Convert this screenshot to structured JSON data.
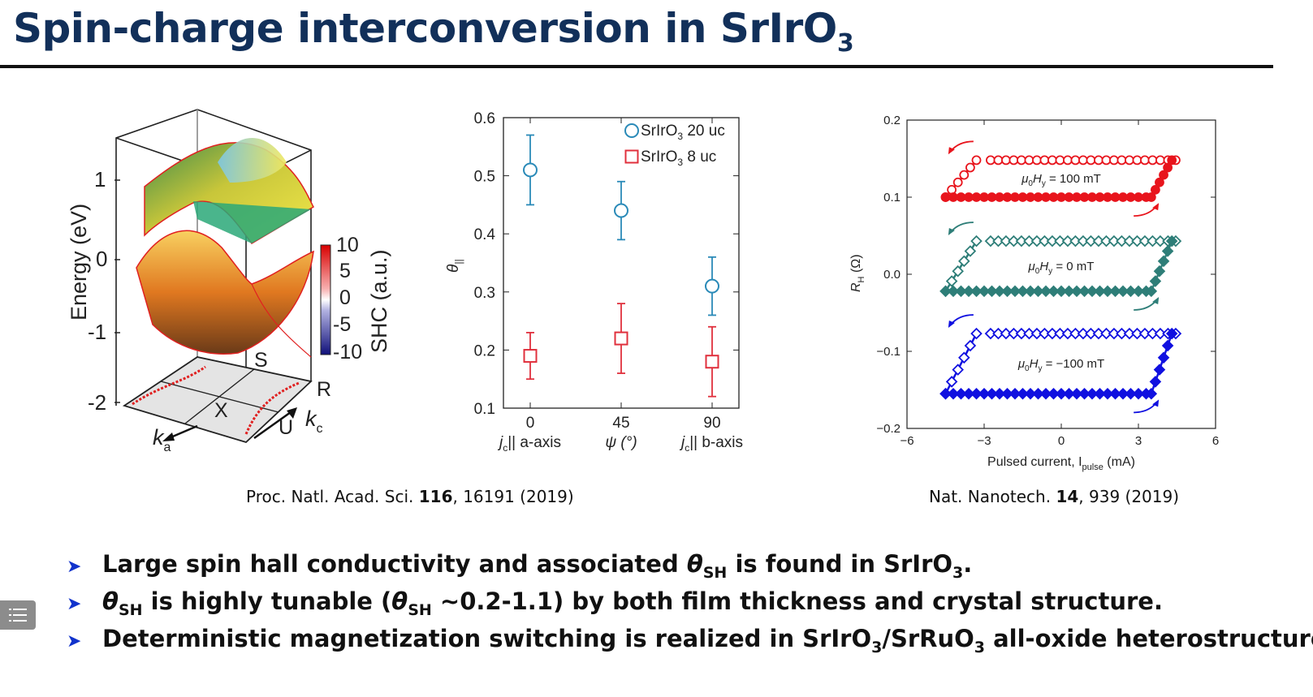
{
  "title": {
    "main": "Spin-charge interconversion in SrIrO",
    "sub": "3"
  },
  "band_figure": {
    "ylabel": "Energy (eV)",
    "yticks": [
      "1",
      "0",
      "-1",
      "-2"
    ],
    "colorbar_label": "SHC (a.u.)",
    "colorbar_ticks": [
      "10",
      "5",
      "0",
      "-5",
      "-10"
    ],
    "points": {
      "S": "S",
      "R": "R",
      "X": "X",
      "U": "U"
    },
    "ka": "k",
    "ka_sub": "a",
    "kc": "k",
    "kc_sub": "c"
  },
  "chart_data": [
    {
      "type": "scatter",
      "ylabel": "θ",
      "ylabel_sub": "||",
      "x": [
        0,
        45,
        90
      ],
      "xtick_labels": [
        "0",
        "45",
        "90"
      ],
      "xlabels": {
        "left": "j",
        "left_sub": "c",
        "left_rest": "|| a-axis",
        "center": "ψ (°)",
        "right": "j",
        "right_sub": "c",
        "right_rest": "|| b-axis"
      },
      "ylim": [
        0.1,
        0.6
      ],
      "yticks": [
        "0.1",
        "0.2",
        "0.3",
        "0.4",
        "0.5",
        "0.6"
      ],
      "legend_position": "top-right",
      "series": [
        {
          "name": "SrIrO",
          "name_sub": "3",
          "name_rest": " 20 uc",
          "marker": "circle",
          "color": "#2a8ab8",
          "values": [
            0.51,
            0.44,
            0.31
          ],
          "err_low": [
            0.45,
            0.39,
            0.26
          ],
          "err_high": [
            0.57,
            0.49,
            0.36
          ]
        },
        {
          "name": "SrIrO",
          "name_sub": "3",
          "name_rest": " 8 uc",
          "marker": "square",
          "color": "#e0303d",
          "values": [
            0.19,
            0.22,
            0.18
          ],
          "err_low": [
            0.15,
            0.16,
            0.12
          ],
          "err_high": [
            0.23,
            0.28,
            0.24
          ]
        }
      ]
    },
    {
      "type": "line",
      "ylabel": "R",
      "ylabel_sub": "H",
      "ylabel_rest": " (Ω)",
      "xlabel": "Pulsed current, I",
      "xlabel_sub": "pulse",
      "xlabel_rest": " (mA)",
      "xlim": [
        -6,
        6
      ],
      "ylim": [
        -0.2,
        0.2
      ],
      "xticks": [
        "−6",
        "−3",
        "0",
        "3",
        "6"
      ],
      "yticks": [
        "0.2",
        "0.1",
        "0.0",
        "−0.1",
        "−0.2"
      ],
      "series": [
        {
          "label": "μ0Hy = 100 mT",
          "label_parts": [
            "μ",
            "0",
            "H",
            "y",
            " = 100 mT"
          ],
          "color": "#e8141c",
          "marker": "circle",
          "upper": 0.148,
          "lower": 0.1,
          "switch_pos": 3.5,
          "switch_neg": -3.0
        },
        {
          "label": "μ0Hy = 0 mT",
          "label_parts": [
            "μ",
            "0",
            "H",
            "y",
            " = 0 mT"
          ],
          "color": "#2e7e78",
          "marker": "diamond",
          "upper": 0.043,
          "lower": -0.022,
          "switch_pos": 3.5,
          "switch_neg": -3.0
        },
        {
          "label": "μ0Hy = −100 mT",
          "label_parts": [
            "μ",
            "0",
            "H",
            "y",
            " = −100 mT"
          ],
          "color": "#1010e0",
          "marker": "diamond",
          "upper": -0.077,
          "lower": -0.155,
          "switch_pos": 3.5,
          "switch_neg": -3.0
        }
      ]
    }
  ],
  "captions": {
    "left_pre": "Proc. Natl. Acad. Sci. ",
    "left_bold": "116",
    "left_post": ", 16191 (2019)",
    "right_pre": "Nat. Nanotech. ",
    "right_bold": "14",
    "right_post": ", 939 (2019)"
  },
  "bullets": {
    "b1_a": "Large spin hall conductivity and associated ",
    "b1_theta": "θ",
    "b1_sub": "SH",
    "b1_b": " is found in SrIrO",
    "b1_sub2": "3",
    "b1_c": ".",
    "b2_theta": "θ",
    "b2_sub": "SH",
    "b2_a": " is highly tunable (",
    "b2_theta2": "θ",
    "b2_sub2": "SH",
    "b2_b": " ~0.2-1.1) by both film thickness and crystal structure.",
    "b3_a": "Deterministic magnetization switching is realized in SrIrO",
    "b3_sub": "3",
    "b3_b": "/SrRuO",
    "b3_sub2": "3",
    "b3_c": " all-oxide heterostructure.",
    "arrow": "➤"
  },
  "menu_icon": "list-icon"
}
